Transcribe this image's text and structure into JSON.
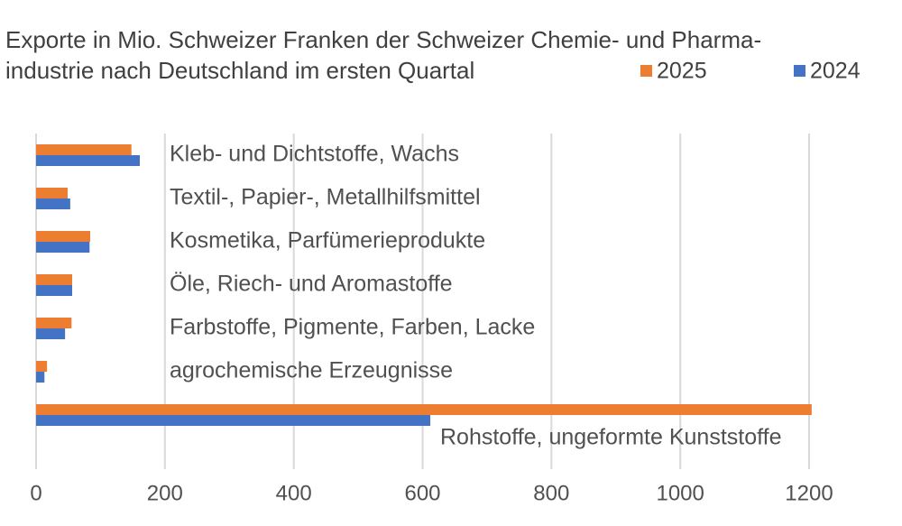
{
  "chart_data": {
    "type": "hbar",
    "title": [
      "Exporte in Mio. Schweizer Franken der Schweizer Chemie- und Pharma-",
      "industrie nach Deutschland im ersten Quartal"
    ],
    "categories": [
      "Kleb- und Dichtstoffe, Wachs",
      "Textil-, Papier-, Metallhilfsmittel",
      "Kosmetika, Parfümerieprodukte",
      "Öle, Riech- und Aromastoffe",
      "Farbstoffe, Pigmente, Farben, Lacke",
      "agrochemische Erzeugnisse",
      "Rohstoffe, ungeformte Kunststoffe"
    ],
    "series": [
      {
        "name": "2025",
        "color": "#ed7d31",
        "values": [
          148,
          49,
          84,
          56,
          55,
          17,
          1204
        ]
      },
      {
        "name": "2024",
        "color": "#4472c4",
        "values": [
          161,
          53,
          83,
          56,
          45,
          13,
          612
        ]
      }
    ],
    "xlim": [
      0,
      1200
    ],
    "xticks": [
      0,
      200,
      400,
      600,
      800,
      1000,
      1200
    ],
    "grid": true
  }
}
